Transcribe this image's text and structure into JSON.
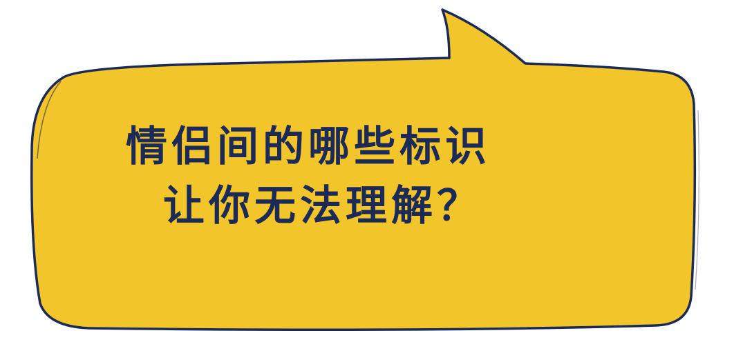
{
  "bubble": {
    "fill_color": "#f2c52a",
    "outline_color": "#1b2a57",
    "text_color": "#1b2a57"
  },
  "caption": {
    "line1": "情侣间的哪些标识",
    "line2": "让你无法理解？"
  }
}
